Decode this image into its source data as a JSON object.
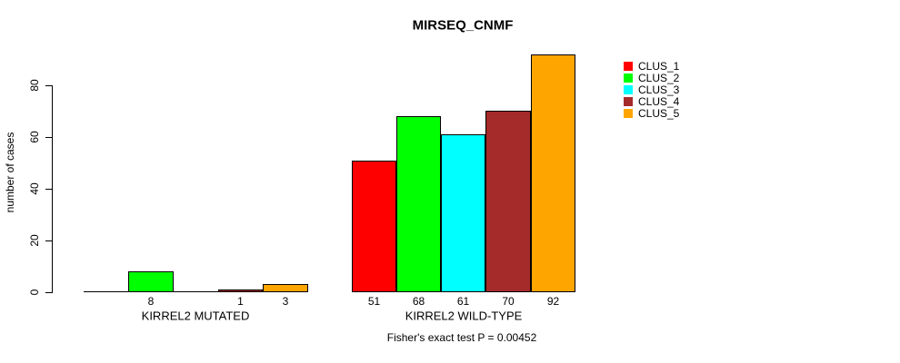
{
  "chart_data": {
    "type": "bar",
    "title": "MIRSEQ_CNMF",
    "ylabel": "number of cases",
    "xlabel": "",
    "ylim": [
      0,
      92
    ],
    "yticks": [
      0,
      20,
      40,
      60,
      80
    ],
    "grid": false,
    "legend_position": "top-right-inside",
    "categories": [
      "KIRREL2 MUTATED",
      "KIRREL2 WILD-TYPE"
    ],
    "series": [
      {
        "name": "CLUS_1",
        "color": "#FF0000",
        "values": [
          0,
          51
        ]
      },
      {
        "name": "CLUS_2",
        "color": "#00FF00",
        "values": [
          8,
          68
        ]
      },
      {
        "name": "CLUS_3",
        "color": "#00FFFF",
        "values": [
          0,
          61
        ]
      },
      {
        "name": "CLUS_4",
        "color": "#A52A2A",
        "values": [
          1,
          70
        ]
      },
      {
        "name": "CLUS_5",
        "color": "#FFA500",
        "values": [
          3,
          92
        ]
      }
    ],
    "bar_value_labels": {
      "KIRREL2 MUTATED": [
        "8",
        "1",
        "3"
      ],
      "KIRREL2 WILD-TYPE": [
        "51",
        "68",
        "61",
        "70",
        "92"
      ]
    },
    "zero_value_bars_unlabeled": true,
    "annotation": "Fisher's exact test P = 0.00452",
    "bar_border_color": "#000000",
    "axis_color": "#000000"
  }
}
